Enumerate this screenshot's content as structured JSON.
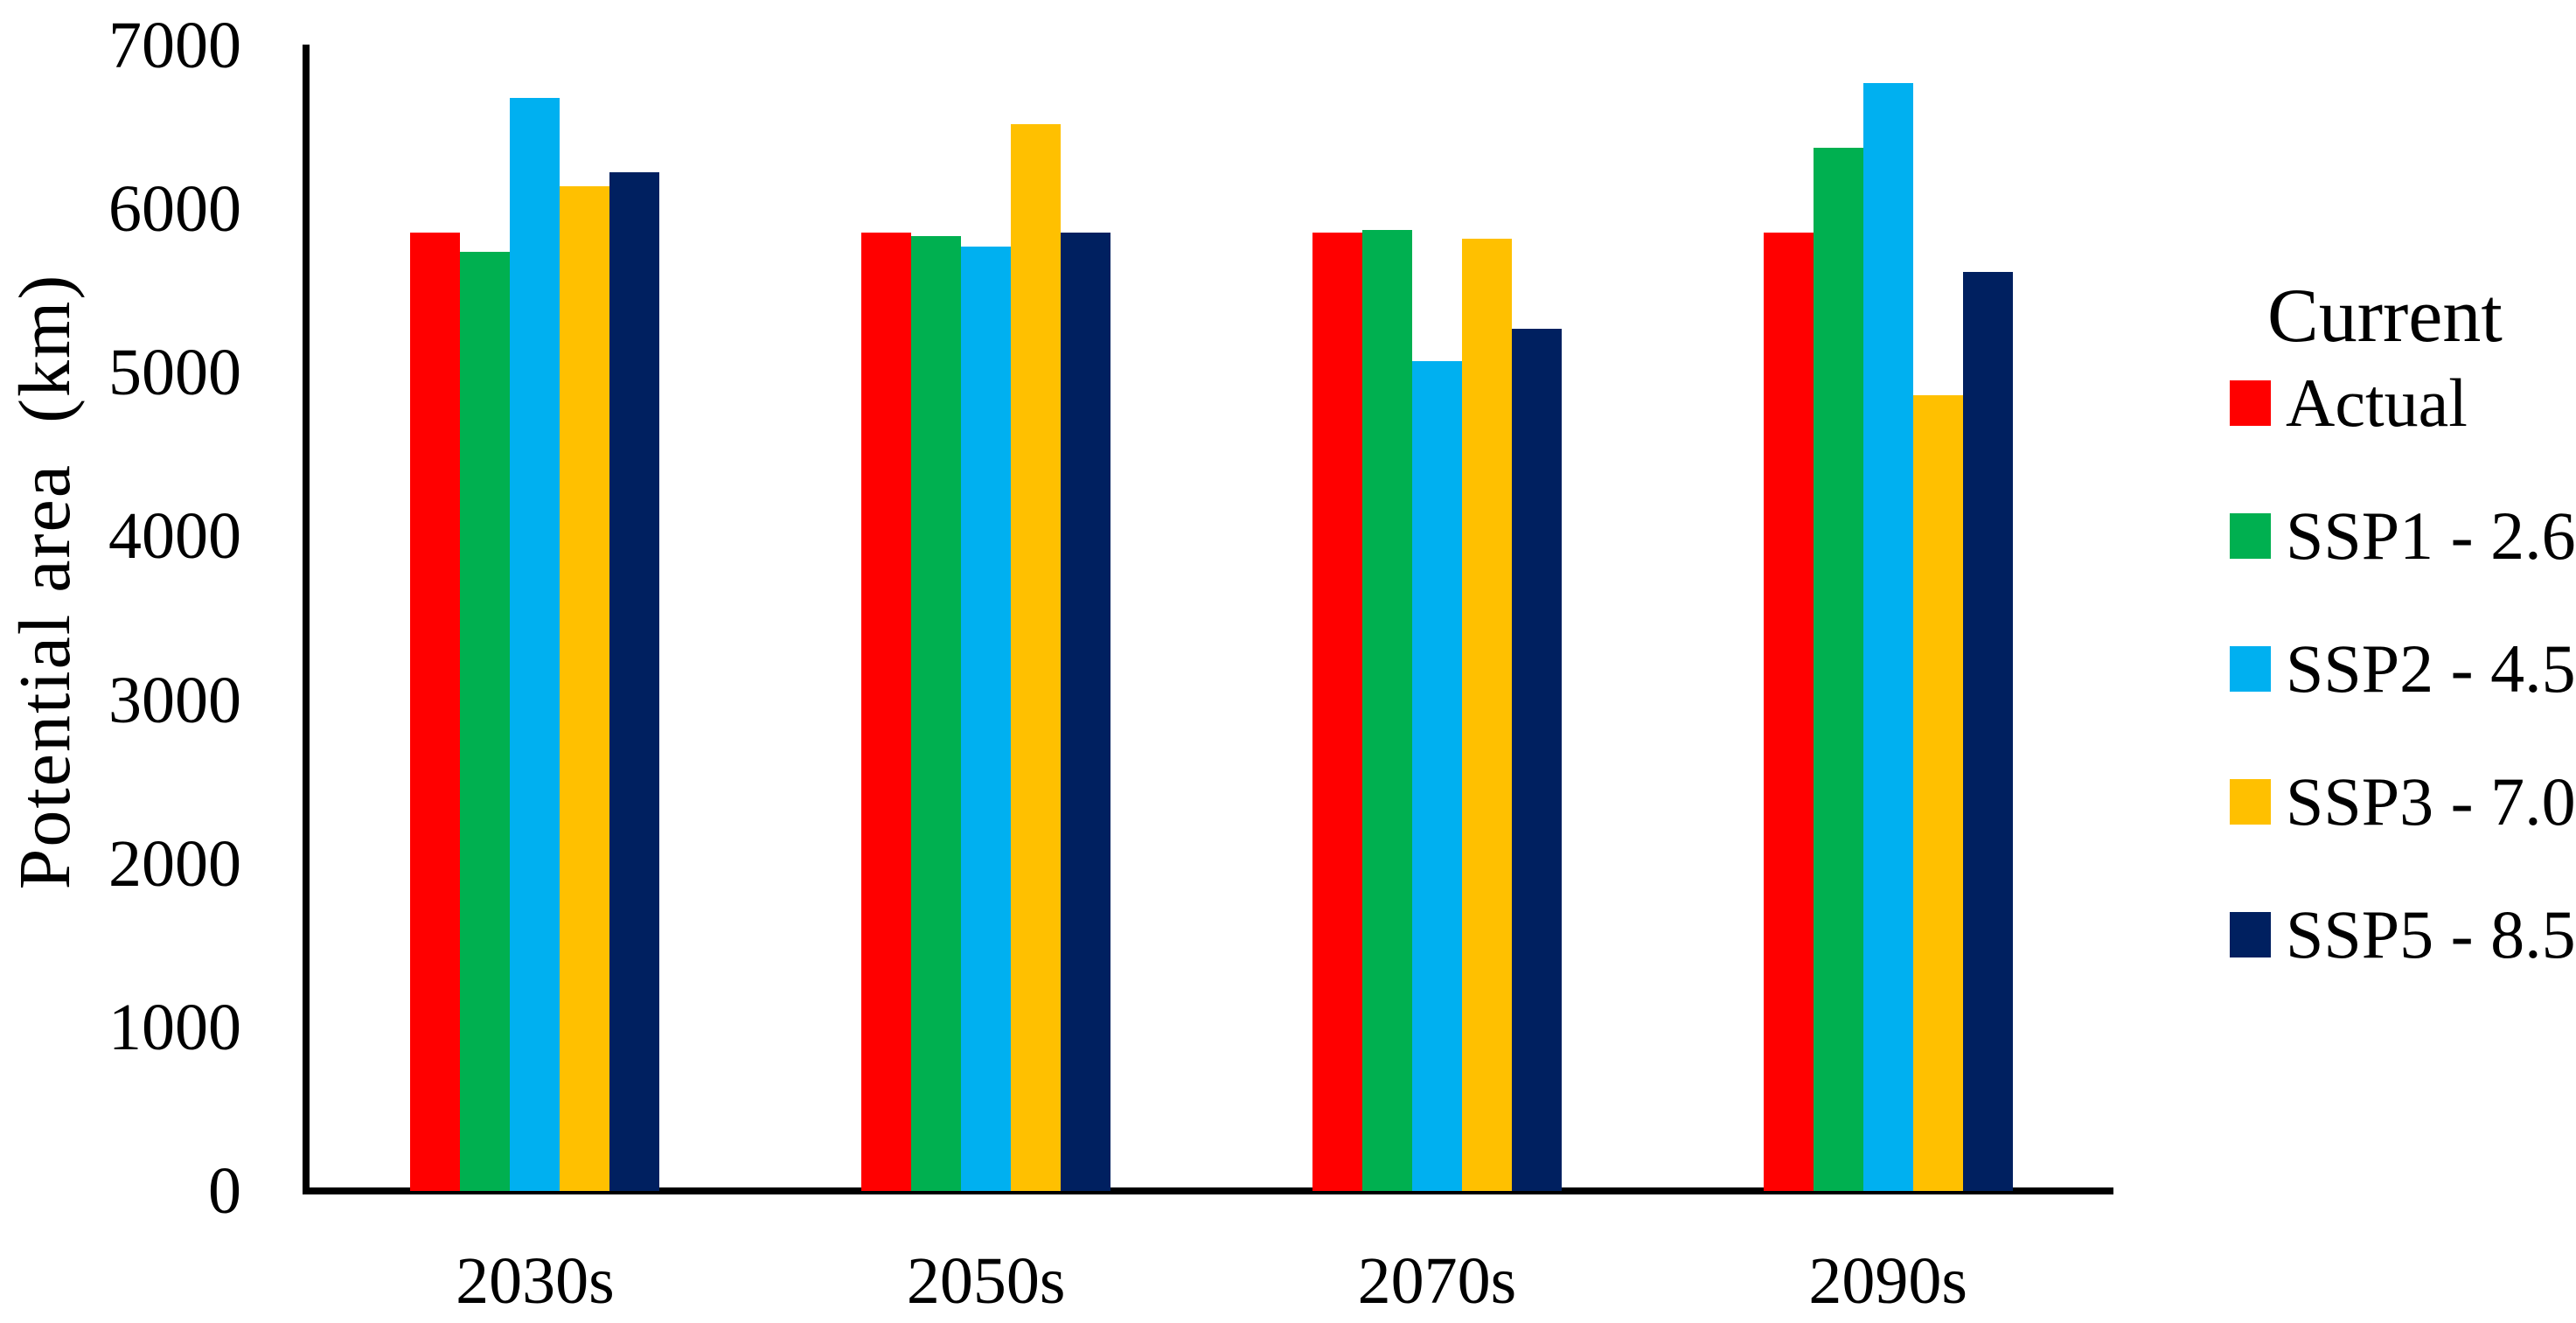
{
  "figure": {
    "background": "#ffffff",
    "axis_color": "#000000",
    "text_color": "#000000"
  },
  "y_axis": {
    "title": "Potential area  (km)",
    "min": 0,
    "max": 7000,
    "ticks": [
      0,
      1000,
      2000,
      3000,
      4000,
      5000,
      6000,
      7000
    ]
  },
  "x_axis": {
    "categories": [
      "2030s",
      "2050s",
      "2070s",
      "2090s"
    ]
  },
  "legend": {
    "title": "Current",
    "position": "right",
    "items": [
      {
        "label": "Actual",
        "color": "#FF0000"
      },
      {
        "label": "SSP1 - 2.6",
        "color": "#00B050"
      },
      {
        "label": "SSP2 - 4.5",
        "color": "#00B0F0"
      },
      {
        "label": "SSP3 - 7.0",
        "color": "#FFC000"
      },
      {
        "label": "SSP5 - 8.5",
        "color": "#002060"
      }
    ]
  },
  "chart_data": {
    "type": "bar",
    "title": "",
    "xlabel": "",
    "ylabel": "Potential area  (km)",
    "ylim": [
      0,
      7000
    ],
    "grid": false,
    "legend_position": "right",
    "categories": [
      "2030s",
      "2050s",
      "2070s",
      "2090s"
    ],
    "series": [
      {
        "name": "Actual",
        "color": "#FF0000",
        "values": [
          5855,
          5855,
          5855,
          5855
        ]
      },
      {
        "name": "SSP1 - 2.6",
        "color": "#00B050",
        "values": [
          5740,
          5835,
          5870,
          6375
        ]
      },
      {
        "name": "SSP2 - 4.5",
        "color": "#00B0F0",
        "values": [
          6680,
          5770,
          5070,
          6770
        ]
      },
      {
        "name": "SSP3 - 7.0",
        "color": "#FFC000",
        "values": [
          6140,
          6520,
          5820,
          4860
        ]
      },
      {
        "name": "SSP5 - 8.5",
        "color": "#002060",
        "values": [
          6225,
          5855,
          5270,
          5615
        ]
      }
    ]
  }
}
